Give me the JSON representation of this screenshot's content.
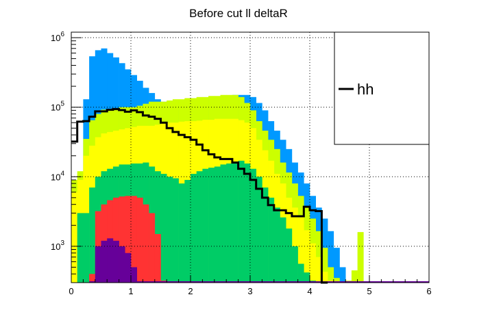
{
  "chart_data": {
    "type": "area",
    "title": "Before cut ll deltaR",
    "xlabel": "",
    "ylabel": "",
    "xlim": [
      0,
      6
    ],
    "ylim": [
      300,
      1200000
    ],
    "y_scale": "log",
    "grid": true,
    "legend_position": "top-right",
    "x_ticks": [
      "0",
      "1",
      "2",
      "3",
      "4",
      "5",
      "6"
    ],
    "y_ticks": [
      {
        "value": 1000,
        "base": "10",
        "exp": "3"
      },
      {
        "value": 10000,
        "base": "10",
        "exp": "4"
      },
      {
        "value": 100000,
        "base": "10",
        "exp": "5"
      },
      {
        "value": 1000000,
        "base": "10",
        "exp": "6"
      }
    ],
    "bin_width": 0.1,
    "stack": [
      {
        "color": "#0099ff",
        "x_start": 0.2,
        "values": [
          130000,
          540000,
          660000,
          700000,
          600000,
          520000,
          430000,
          350000,
          290000,
          240000,
          190000,
          160000,
          130000,
          120000,
          120000,
          120000,
          125000,
          130000,
          130000,
          135000,
          135000,
          140000,
          140000,
          145000,
          145000,
          150000,
          150000,
          150000,
          140000,
          115000,
          90000,
          63000,
          46000,
          34000,
          25000,
          16000,
          11500,
          8000,
          5300,
          3600,
          2500,
          1650,
          950,
          500
        ]
      },
      {
        "color": "#ccff00",
        "x_start": 0.0,
        "values": [
          9000,
          12000,
          35000,
          65000,
          80000,
          92000,
          92000,
          96000,
          100000,
          100000,
          100000,
          105000,
          112000,
          120000,
          120000,
          120000,
          125000,
          130000,
          130000,
          135000,
          135000,
          140000,
          140000,
          145000,
          145000,
          150000,
          150000,
          150000,
          140000,
          115000,
          90000,
          63000,
          46000,
          34000,
          25000,
          16000,
          11500,
          8000,
          5300,
          3600,
          2500,
          1650,
          950,
          500,
          350,
          310,
          320,
          450,
          1600
        ]
      },
      {
        "color": "#ffff00",
        "x_start": 0.0,
        "values": [
          6000,
          9000,
          20000,
          28000,
          37000,
          42000,
          44000,
          46000,
          48000,
          50000,
          52000,
          54000,
          54000,
          54000,
          56000,
          58000,
          60000,
          60000,
          62000,
          63000,
          63000,
          64000,
          66000,
          66000,
          68000,
          68000,
          68000,
          68000,
          65000,
          60000,
          50000,
          34000,
          24000,
          17000,
          11000,
          8000,
          5000,
          3600,
          2600,
          1700,
          1100,
          700,
          430,
          320
        ]
      },
      {
        "color": "#00cc66",
        "x_start": 0.1,
        "values": [
          3000,
          3000,
          7000,
          10000,
          12000,
          13000,
          14000,
          15000,
          15000,
          15500,
          15500,
          16000,
          14000,
          12000,
          11000,
          10000,
          9500,
          8000,
          9000,
          11000,
          12000,
          13000,
          13500,
          14000,
          15000,
          15500,
          16000,
          17000,
          15500,
          13000,
          10000,
          7000,
          5000,
          3600,
          2600,
          1800,
          1000,
          560,
          420,
          320
        ]
      },
      {
        "color": "#ff3333",
        "x_start": 0.3,
        "values": [
          400,
          3200,
          4000,
          4600,
          5000,
          5200,
          5300,
          5300,
          5000,
          4000,
          3000,
          1500,
          320,
          310
        ]
      },
      {
        "color": "#660099",
        "x_start": 0.3,
        "values": [
          300,
          1000,
          1200,
          1300,
          1200,
          1000,
          800,
          500,
          310
        ]
      }
    ],
    "series": [
      {
        "name": "hh",
        "color": "#000000",
        "x_start": 0.0,
        "values": [
          32000,
          62000,
          63000,
          73000,
          87000,
          87000,
          92000,
          94000,
          91000,
          86000,
          90000,
          85000,
          76000,
          73000,
          68000,
          60000,
          50000,
          44000,
          40000,
          37000,
          34000,
          29000,
          24000,
          21000,
          19000,
          18000,
          18000,
          16000,
          13000,
          11000,
          9000,
          6700,
          5000,
          3900,
          3300,
          3300,
          3000,
          2700,
          2700,
          3700,
          3300,
          3200,
          0
        ]
      }
    ]
  }
}
